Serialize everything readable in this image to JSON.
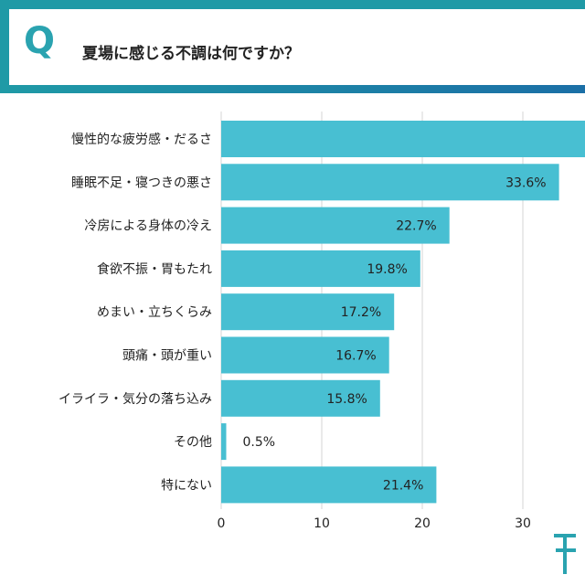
{
  "header": {
    "q_letter": "Q",
    "question": "夏場に感じる不調は何ですか？"
  },
  "colors": {
    "bar": "#48bfd2",
    "grid": "#d6d6d6",
    "accent": "#1f9aa6"
  },
  "chart_data": {
    "type": "bar",
    "orientation": "horizontal",
    "categories": [
      "慢性的な疲労感・だるさ",
      "睡眠不足・寝つきの悪さ",
      "冷房による身体の冷え",
      "食欲不振・胃もたれ",
      "めまい・立ちくらみ",
      "頭痛・頭が重い",
      "イライラ・気分の落ち込み",
      "その他",
      "特にない"
    ],
    "values": [
      40.0,
      33.6,
      22.7,
      19.8,
      17.2,
      16.7,
      15.8,
      0.5,
      21.4
    ],
    "value_labels": [
      "",
      "33.6%",
      "22.7%",
      "19.8%",
      "17.2%",
      "16.7%",
      "15.8%",
      "0.5%",
      "21.4%"
    ],
    "xticks": [
      "0",
      "10",
      "20",
      "30"
    ],
    "xlim": [
      0,
      40
    ],
    "grid": true
  }
}
